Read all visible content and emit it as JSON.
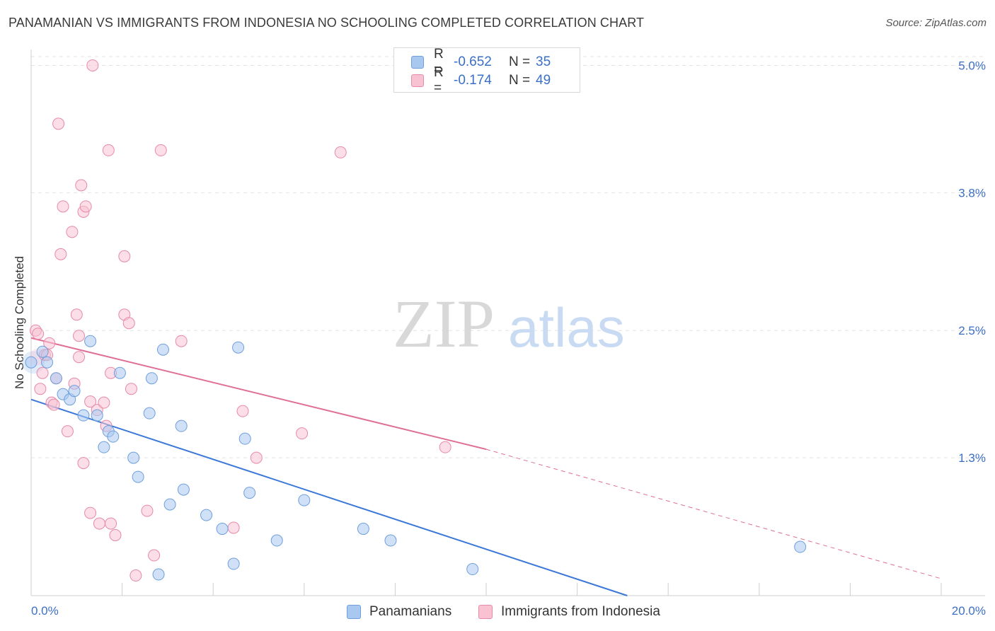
{
  "title": "PANAMANIAN VS IMMIGRANTS FROM INDONESIA NO SCHOOLING COMPLETED CORRELATION CHART",
  "source": "Source: ZipAtlas.com",
  "watermark": {
    "zip": "ZIP",
    "atlas": "atlas"
  },
  "legend": {
    "rows": [
      {
        "r_label": "R =",
        "r_value": "-0.652",
        "n_label": "N =",
        "n_value": "35",
        "color": "#a9c8f0",
        "border": "#6f9fdc"
      },
      {
        "r_label": "R =",
        "r_value": "-0.174",
        "n_label": "N =",
        "n_value": "49",
        "color": "#f8c2d3",
        "border": "#e68aa8"
      }
    ]
  },
  "bottom_legend": {
    "series1": "Panamanians",
    "series2": "Immigrants from Indonesia"
  },
  "chart_data": {
    "type": "scatter",
    "title": "PANAMANIAN VS IMMIGRANTS FROM INDONESIA NO SCHOOLING COMPLETED CORRELATION CHART",
    "xlabel": "",
    "ylabel": "No Schooling Completed",
    "xlim": [
      0,
      20
    ],
    "ylim": [
      0,
      5.15
    ],
    "x_tick_labels": [
      "0.0%",
      "20.0%"
    ],
    "y_ticks": [
      1.3,
      2.5,
      3.8,
      5.0
    ],
    "y_tick_labels": [
      "1.3%",
      "2.5%",
      "3.8%",
      "5.0%"
    ],
    "grid": true,
    "colors": {
      "blue": "#3b78d8",
      "pink": "#e06f98",
      "tick": "#3b6fc7"
    },
    "series": [
      {
        "name": "Panamanians",
        "trend": {
          "x0": 0,
          "y0": 1.85,
          "x1": 13.1,
          "y1": 0.0
        },
        "points": [
          [
            0.0,
            2.2
          ],
          [
            0.25,
            2.3
          ],
          [
            0.35,
            2.2
          ],
          [
            0.55,
            2.05
          ],
          [
            0.7,
            1.9
          ],
          [
            0.85,
            1.85
          ],
          [
            0.95,
            1.93
          ],
          [
            1.15,
            1.7
          ],
          [
            1.3,
            2.4
          ],
          [
            1.45,
            1.7
          ],
          [
            1.6,
            1.4
          ],
          [
            1.7,
            1.55
          ],
          [
            1.8,
            1.5
          ],
          [
            1.95,
            2.1
          ],
          [
            2.25,
            1.3
          ],
          [
            2.35,
            1.12
          ],
          [
            2.6,
            1.72
          ],
          [
            2.65,
            2.05
          ],
          [
            2.8,
            0.2
          ],
          [
            2.9,
            2.32
          ],
          [
            3.05,
            0.86
          ],
          [
            3.3,
            1.6
          ],
          [
            3.35,
            1.0
          ],
          [
            3.85,
            0.76
          ],
          [
            4.2,
            0.63
          ],
          [
            4.45,
            0.3
          ],
          [
            4.55,
            2.34
          ],
          [
            4.7,
            1.48
          ],
          [
            4.8,
            0.97
          ],
          [
            5.4,
            0.52
          ],
          [
            6.0,
            0.9
          ],
          [
            7.3,
            0.63
          ],
          [
            7.9,
            0.52
          ],
          [
            9.7,
            0.25
          ],
          [
            16.9,
            0.46
          ]
        ]
      },
      {
        "name": "Immigrants from Indonesia",
        "trend": {
          "x0": 0,
          "y0": 2.43,
          "x1": 10.0,
          "y1": 1.38
        },
        "trend_ext": {
          "x0": 10.0,
          "y0": 1.38,
          "x1": 20.0,
          "y1": 0.16
        },
        "points": [
          [
            0.1,
            2.5
          ],
          [
            0.15,
            2.47
          ],
          [
            0.2,
            1.95
          ],
          [
            0.25,
            2.1
          ],
          [
            0.3,
            2.27
          ],
          [
            0.35,
            2.27
          ],
          [
            0.4,
            2.38
          ],
          [
            0.45,
            1.82
          ],
          [
            0.5,
            1.8
          ],
          [
            0.55,
            2.05
          ],
          [
            0.6,
            4.45
          ],
          [
            0.65,
            3.22
          ],
          [
            0.7,
            3.67
          ],
          [
            0.8,
            1.55
          ],
          [
            0.9,
            3.43
          ],
          [
            0.95,
            2.0
          ],
          [
            1.0,
            2.65
          ],
          [
            1.05,
            2.45
          ],
          [
            1.05,
            2.25
          ],
          [
            1.1,
            3.87
          ],
          [
            1.15,
            1.25
          ],
          [
            1.15,
            3.62
          ],
          [
            1.2,
            3.67
          ],
          [
            1.3,
            0.78
          ],
          [
            1.3,
            1.83
          ],
          [
            1.35,
            5.0
          ],
          [
            1.45,
            1.75
          ],
          [
            1.5,
            0.68
          ],
          [
            1.6,
            1.82
          ],
          [
            1.65,
            1.6
          ],
          [
            1.7,
            4.2
          ],
          [
            1.75,
            0.68
          ],
          [
            1.75,
            2.1
          ],
          [
            1.85,
            0.57
          ],
          [
            2.05,
            2.65
          ],
          [
            2.05,
            3.2
          ],
          [
            2.15,
            2.57
          ],
          [
            2.2,
            1.95
          ],
          [
            2.3,
            0.19
          ],
          [
            2.55,
            0.8
          ],
          [
            2.7,
            0.38
          ],
          [
            2.85,
            4.2
          ],
          [
            3.3,
            2.4
          ],
          [
            4.45,
            0.64
          ],
          [
            4.65,
            1.74
          ],
          [
            4.95,
            1.3
          ],
          [
            5.95,
            1.53
          ],
          [
            6.8,
            4.18
          ],
          [
            9.1,
            1.4
          ]
        ]
      }
    ]
  }
}
